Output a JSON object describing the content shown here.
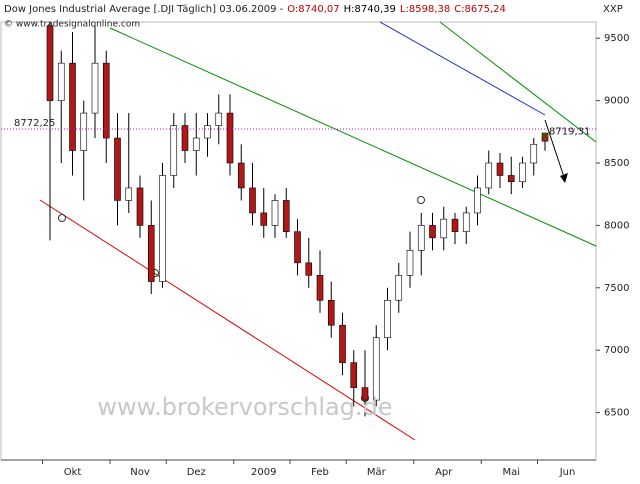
{
  "chart_data": {
    "type": "candlestick",
    "title": "Dow Jones Industrial Average [.DJI  Täglich] 03.06.2009 -",
    "ohlc_labels": [
      {
        "text": "O:8740,07",
        "color": "#c00000"
      },
      {
        "text": "H:8740,39",
        "color": "#000000"
      },
      {
        "text": "L:8598,38",
        "color": "#c00000"
      },
      {
        "text": "C:8675,24",
        "color": "#c00000"
      }
    ],
    "source": "© www.tradesignalonline.com",
    "watermark": "www.brokervorschlag.de",
    "y_axis_label": "XXP",
    "categories": [
      null,
      null,
      "Okt",
      null,
      null,
      null,
      null,
      null,
      "Nov",
      null,
      null,
      null,
      null,
      "Dez",
      null,
      null,
      null,
      null,
      null,
      "2009",
      null,
      null,
      null,
      null,
      "Feb",
      null,
      null,
      null,
      null,
      "Mär",
      null,
      null,
      null,
      null,
      null,
      "Apr",
      null,
      null,
      null,
      null,
      null,
      "Mai",
      null,
      null,
      null,
      null,
      "Jun"
    ],
    "open": [
      9600,
      9000,
      9300,
      8600,
      8900,
      9300,
      8700,
      8200,
      8300,
      8000,
      7550,
      8400,
      8800,
      8600,
      8700,
      8800,
      8900,
      8500,
      8300,
      8100,
      8000,
      8200,
      7950,
      7700,
      7600,
      7400,
      7200,
      6900,
      6700,
      6600,
      7100,
      7400,
      7600,
      7800,
      8000,
      7900,
      8050,
      7950,
      8100,
      8300,
      8500,
      8400,
      8350,
      8500,
      8740.07,
      null,
      null
    ],
    "high": [
      9630,
      9400,
      9550,
      9000,
      9600,
      9400,
      8900,
      8900,
      8400,
      8200,
      8500,
      8900,
      8900,
      8900,
      8900,
      9050,
      9050,
      8650,
      8500,
      8300,
      8250,
      8300,
      8050,
      7900,
      7800,
      7550,
      7300,
      7000,
      7000,
      7200,
      7500,
      7700,
      7950,
      8100,
      8100,
      8150,
      8100,
      8150,
      8400,
      8600,
      8580,
      8550,
      8550,
      8700,
      8740.39,
      null,
      null
    ],
    "low": [
      7880,
      8500,
      8400,
      8200,
      8700,
      8500,
      8000,
      8100,
      7900,
      7450,
      7500,
      8300,
      8500,
      8400,
      8550,
      8650,
      8400,
      8200,
      8000,
      7900,
      7900,
      7900,
      7600,
      7500,
      7300,
      7100,
      6800,
      6550,
      6470,
      6550,
      7000,
      7300,
      7500,
      7600,
      7800,
      7800,
      7850,
      7850,
      8000,
      8250,
      8300,
      8250,
      8300,
      8400,
      8598.38,
      null,
      null
    ],
    "close": [
      9000,
      9300,
      8600,
      8900,
      9300,
      8700,
      8200,
      8300,
      8000,
      7550,
      8400,
      8800,
      8600,
      8700,
      8800,
      8900,
      8500,
      8300,
      8100,
      8000,
      8200,
      7950,
      7700,
      7600,
      7400,
      7200,
      6900,
      6700,
      6600,
      7100,
      7400,
      7600,
      7800,
      8000,
      7900,
      8050,
      7950,
      8100,
      8300,
      8500,
      8400,
      8350,
      8500,
      8650,
      8675.24,
      null,
      null
    ],
    "up_color": "#ffffff",
    "down_color": "#b01818",
    "ylim": [
      6120,
      9630
    ],
    "yticks": [
      6500,
      7000,
      7500,
      8000,
      8500,
      9000,
      9500
    ],
    "reference_lines": [
      {
        "value": 8772.25,
        "label": "8772,25",
        "color": "#d000d0"
      }
    ],
    "annotations": [
      {
        "value": 8719.31,
        "label": "8719,31",
        "color": "#008000"
      }
    ]
  }
}
